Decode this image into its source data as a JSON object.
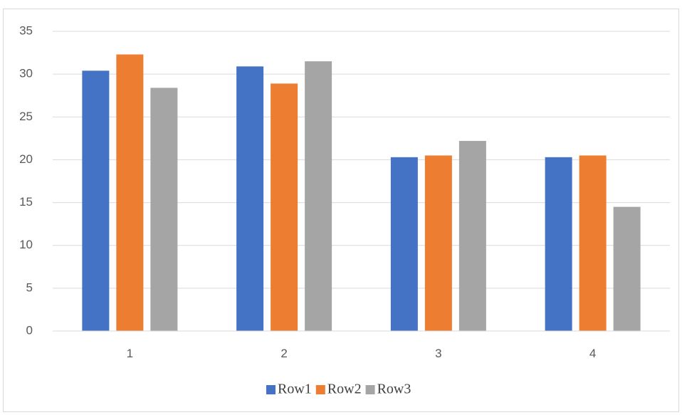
{
  "chart_data": {
    "type": "bar",
    "categories": [
      "1",
      "2",
      "3",
      "4"
    ],
    "series": [
      {
        "name": "Row1",
        "color": "#4472c4",
        "values": [
          30.4,
          30.9,
          20.3,
          20.3
        ]
      },
      {
        "name": "Row2",
        "color": "#ed7d31",
        "values": [
          32.3,
          28.9,
          20.5,
          20.5
        ]
      },
      {
        "name": "Row3",
        "color": "#a5a5a5",
        "values": [
          28.4,
          31.5,
          22.2,
          14.5
        ]
      }
    ],
    "ylim": [
      0,
      35
    ],
    "yticks": [
      0,
      5,
      10,
      15,
      20,
      25,
      30,
      35
    ],
    "grid": true,
    "legend_position": "bottom",
    "title": "",
    "xlabel": "",
    "ylabel": ""
  }
}
